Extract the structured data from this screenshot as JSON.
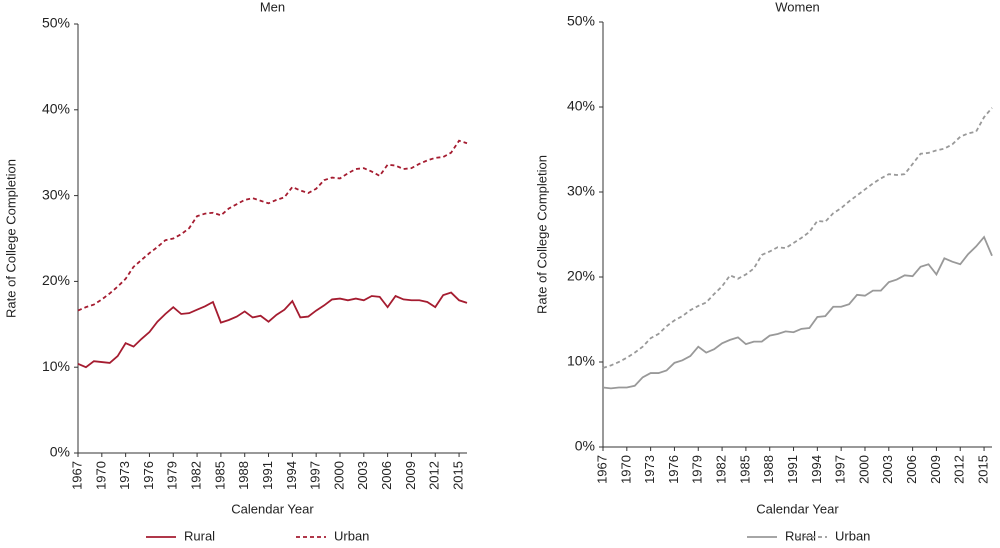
{
  "chart_data": [
    {
      "type": "line",
      "title": "Men",
      "x_label": "Calendar Year",
      "y_label": "Rate of College Completion",
      "x": [
        1967,
        1968,
        1969,
        1970,
        1971,
        1972,
        1973,
        1974,
        1975,
        1976,
        1977,
        1978,
        1979,
        1980,
        1981,
        1982,
        1983,
        1984,
        1985,
        1986,
        1987,
        1988,
        1989,
        1990,
        1991,
        1992,
        1993,
        1994,
        1995,
        1996,
        1997,
        1998,
        1999,
        2000,
        2001,
        2002,
        2003,
        2004,
        2005,
        2006,
        2007,
        2008,
        2009,
        2010,
        2011,
        2012,
        2013,
        2014,
        2015,
        2016
      ],
      "xlim": [
        1967,
        2016
      ],
      "xticks": [
        1967,
        1970,
        1973,
        1976,
        1979,
        1982,
        1985,
        1988,
        1991,
        1994,
        1997,
        2000,
        2003,
        2006,
        2009,
        2012,
        2015
      ],
      "ylim": [
        0,
        50
      ],
      "yticks": [
        {
          "value": 0,
          "label": "0%"
        },
        {
          "value": 10,
          "label": "10%"
        },
        {
          "value": 20,
          "label": "20%"
        },
        {
          "value": 30,
          "label": "30%"
        },
        {
          "value": 40,
          "label": "40%"
        },
        {
          "value": 50,
          "label": "50%"
        }
      ],
      "series": [
        {
          "name": "Rural",
          "color": "#a51c30",
          "line_style": "solid",
          "values": [
            10.4,
            10.0,
            10.7,
            10.6,
            10.5,
            11.3,
            12.8,
            12.4,
            13.3,
            14.1,
            15.3,
            16.2,
            17.0,
            16.2,
            16.3,
            16.7,
            17.1,
            17.6,
            15.2,
            15.5,
            15.9,
            16.5,
            15.8,
            16.0,
            15.3,
            16.1,
            16.7,
            17.7,
            15.8,
            15.9,
            16.6,
            17.2,
            17.9,
            18.0,
            17.8,
            18.0,
            17.8,
            18.3,
            18.2,
            17.0,
            18.3,
            17.9,
            17.8,
            17.8,
            17.6,
            17.0,
            18.4,
            18.7,
            17.8,
            17.5
          ]
        },
        {
          "name": "Urban",
          "color": "#a51c30",
          "line_style": "dashed",
          "values": [
            16.6,
            17.0,
            17.3,
            17.9,
            18.6,
            19.4,
            20.3,
            21.7,
            22.5,
            23.3,
            24.0,
            24.8,
            25.0,
            25.5,
            26.2,
            27.6,
            27.9,
            28.0,
            27.7,
            28.5,
            29.0,
            29.5,
            29.7,
            29.4,
            29.1,
            29.5,
            29.8,
            31.0,
            30.6,
            30.3,
            30.8,
            31.8,
            32.1,
            32.0,
            32.6,
            33.1,
            33.2,
            32.8,
            32.3,
            33.6,
            33.5,
            33.1,
            33.2,
            33.7,
            34.1,
            34.4,
            34.5,
            35.0,
            36.4,
            36.1
          ]
        }
      ]
    },
    {
      "type": "line",
      "title": "Women",
      "x_label": "Calendar Year",
      "y_label": "Rate of College Completion",
      "x": [
        1967,
        1968,
        1969,
        1970,
        1971,
        1972,
        1973,
        1974,
        1975,
        1976,
        1977,
        1978,
        1979,
        1980,
        1981,
        1982,
        1983,
        1984,
        1985,
        1986,
        1987,
        1988,
        1989,
        1990,
        1991,
        1992,
        1993,
        1994,
        1995,
        1996,
        1997,
        1998,
        1999,
        2000,
        2001,
        2002,
        2003,
        2004,
        2005,
        2006,
        2007,
        2008,
        2009,
        2010,
        2011,
        2012,
        2013,
        2014,
        2015,
        2016
      ],
      "xlim": [
        1967,
        2016
      ],
      "xticks": [
        1967,
        1970,
        1973,
        1976,
        1979,
        1982,
        1985,
        1988,
        1991,
        1994,
        1997,
        2000,
        2003,
        2006,
        2009,
        2012,
        2015
      ],
      "ylim": [
        0,
        50
      ],
      "yticks": [
        {
          "value": 0,
          "label": "0%"
        },
        {
          "value": 10,
          "label": "10%"
        },
        {
          "value": 20,
          "label": "20%"
        },
        {
          "value": 30,
          "label": "30%"
        },
        {
          "value": 40,
          "label": "40%"
        },
        {
          "value": 50,
          "label": "50%"
        }
      ],
      "series": [
        {
          "name": "Rural",
          "color": "#999999",
          "line_style": "solid",
          "values": [
            7.0,
            6.9,
            7.0,
            7.0,
            7.2,
            8.2,
            8.7,
            8.7,
            9.0,
            9.9,
            10.2,
            10.7,
            11.8,
            11.1,
            11.5,
            12.2,
            12.6,
            12.9,
            12.1,
            12.4,
            12.4,
            13.1,
            13.3,
            13.6,
            13.5,
            13.9,
            14.0,
            15.3,
            15.4,
            16.5,
            16.5,
            16.8,
            17.9,
            17.8,
            18.4,
            18.4,
            19.4,
            19.7,
            20.2,
            20.1,
            21.2,
            21.5,
            20.3,
            22.2,
            21.8,
            21.5,
            22.7,
            23.6,
            24.7,
            22.5
          ]
        },
        {
          "name": "Urban",
          "color": "#999999",
          "line_style": "dashed",
          "values": [
            9.3,
            9.6,
            10.0,
            10.5,
            11.1,
            11.8,
            12.8,
            13.3,
            14.2,
            14.9,
            15.4,
            16.1,
            16.6,
            17.0,
            18.0,
            18.9,
            20.2,
            19.8,
            20.3,
            21.0,
            22.6,
            23.0,
            23.5,
            23.4,
            24.0,
            24.6,
            25.3,
            26.6,
            26.5,
            27.5,
            28.1,
            28.9,
            29.6,
            30.3,
            31.0,
            31.6,
            32.1,
            32.0,
            32.1,
            33.3,
            34.5,
            34.6,
            34.9,
            35.1,
            35.6,
            36.5,
            36.9,
            37.1,
            38.8,
            39.9
          ]
        }
      ]
    }
  ]
}
